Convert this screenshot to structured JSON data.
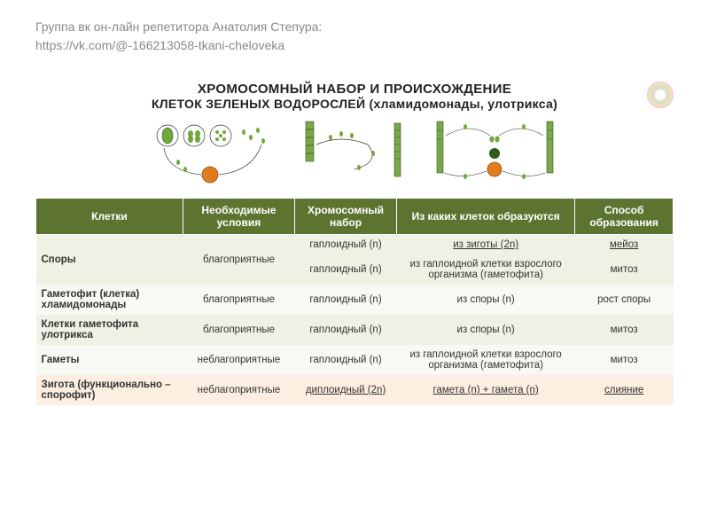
{
  "header": {
    "line1": "Группа вк он-лайн репетитора Анатолия Степура:",
    "line2": "https://vk.com/@-166213058-tkani-cheloveka"
  },
  "titles": {
    "t1": "ХРОМОСОМНЫЙ НАБОР И ПРОИСХОЖДЕНИЕ",
    "t2": "КЛЕТОК ЗЕЛЕНЫХ ВОДОРОСЛЕЙ (хламидомонады, улотрикса)"
  },
  "diagram_colors": {
    "green_dark": "#2e5a1c",
    "green_light": "#6fa93a",
    "orange": "#e07b1f",
    "outline": "#333333",
    "filament": "#7aa84a"
  },
  "table": {
    "columns": [
      "Клетки",
      "Необходимые условия",
      "Хромосомный набор",
      "Из каких клеток образуются",
      "Способ образования"
    ],
    "rows": [
      {
        "c0": "Споры",
        "c1": "благоприятные",
        "c2": "гаплоидный (n)",
        "c3": "из зиготы (2n)",
        "c4": "мейоз",
        "alt": 0,
        "u2": false,
        "u3": true,
        "u4": true
      },
      {
        "c0": "",
        "c1": "",
        "c2": "гаплоидный (n)",
        "c3": "из гаплоидной клетки взрослого организма (гаметофита)",
        "c4": "митоз",
        "alt": 0,
        "u2": false,
        "u3": false,
        "u4": false
      },
      {
        "c0": "Гаметофит (клетка) хламидомонады",
        "c1": "благоприятные",
        "c2": "гаплоидный (n)",
        "c3": "из споры (n)",
        "c4": "рост споры",
        "alt": 1,
        "u2": false,
        "u3": false,
        "u4": false
      },
      {
        "c0": "Клетки гаметофита улотрикса",
        "c1": "благоприятные",
        "c2": "гаплоидный (n)",
        "c3": "из споры (n)",
        "c4": "митоз",
        "alt": 0,
        "u2": false,
        "u3": false,
        "u4": false
      },
      {
        "c0": "Гаметы",
        "c1": "неблагоприятные",
        "c2": "гаплоидный (n)",
        "c3": "из гаплоидной клетки взрослого организма (гаметофита)",
        "c4": "митоз",
        "alt": 1,
        "u2": false,
        "u3": false,
        "u4": false
      },
      {
        "c0": "Зигота (функционально – спорофит)",
        "c1": "неблагоприятные",
        "c2": "диплоидный (2n)",
        "c3": "гамета (n) + гамета (n)",
        "c4": "слияние",
        "alt": 2,
        "u2": true,
        "u3": true,
        "u4": true
      }
    ]
  }
}
